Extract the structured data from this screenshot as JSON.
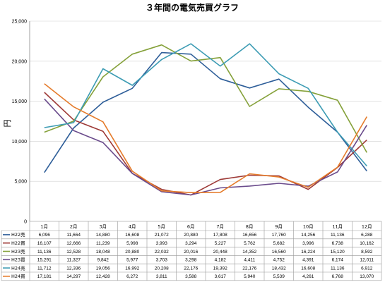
{
  "chart_data": {
    "type": "line",
    "title": "３年間の電気売買グラフ",
    "ylabel": "円",
    "ylim": [
      0,
      25000
    ],
    "yticks": [
      "0",
      "5,000",
      "10,000",
      "15,000",
      "20,000",
      "25,000"
    ],
    "categories": [
      "1月",
      "2月",
      "3月",
      "4月",
      "5月",
      "6月",
      "7月",
      "8月",
      "9月",
      "10月",
      "11月",
      "12月"
    ],
    "grid": true,
    "legend": "data-table",
    "series": [
      {
        "name": "H22売",
        "color": "#2E5E99",
        "values": [
          6096,
          11664,
          14880,
          16608,
          21072,
          20880,
          17808,
          16656,
          17760,
          14256,
          11136,
          6288
        ],
        "labels": [
          "6,096",
          "11,664",
          "14,880",
          "16,608",
          "21,072",
          "20,880",
          "17,808",
          "16,656",
          "17,760",
          "14,256",
          "11,136",
          "6,288"
        ]
      },
      {
        "name": "H22買",
        "color": "#9E3A37",
        "values": [
          16107,
          12666,
          11239,
          5998,
          3993,
          3294,
          5227,
          5762,
          5682,
          3996,
          6738,
          10162
        ],
        "labels": [
          "16,107",
          "12,666",
          "11,239",
          "5,998",
          "3,993",
          "3,294",
          "5,227",
          "5,762",
          "5,682",
          "3,996",
          "6,738",
          "10,162"
        ]
      },
      {
        "name": "H23売",
        "color": "#85A13A",
        "values": [
          11136,
          12528,
          18048,
          20880,
          22032,
          20016,
          20448,
          14352,
          16560,
          16224,
          15120,
          8592
        ],
        "labels": [
          "11,136",
          "12,528",
          "18,048",
          "20,880",
          "22,032",
          "20,016",
          "20,448",
          "14,352",
          "16,560",
          "16,224",
          "15,120",
          "8,592"
        ]
      },
      {
        "name": "H23買",
        "color": "#6B4C8C",
        "values": [
          15291,
          11327,
          9842,
          5977,
          3703,
          3298,
          4182,
          4411,
          4752,
          4391,
          6174,
          12011
        ],
        "labels": [
          "15,291",
          "11,327",
          "9,842",
          "5,977",
          "3,703",
          "3,298",
          "4,182",
          "4,411",
          "4,752",
          "4,391",
          "6,174",
          "12,011"
        ]
      },
      {
        "name": "H24売",
        "color": "#3D9CB4",
        "values": [
          11712,
          12336,
          19056,
          16992,
          20208,
          22176,
          19392,
          22176,
          18432,
          16608,
          11136,
          6912
        ],
        "labels": [
          "11,712",
          "12,336",
          "19,056",
          "16,992",
          "20,208",
          "22,176",
          "19,392",
          "22,176",
          "18,432",
          "16,608",
          "11,136",
          "6,912"
        ]
      },
      {
        "name": "H24買",
        "color": "#E57C2C",
        "values": [
          17181,
          14297,
          12428,
          6272,
          3811,
          3588,
          3617,
          5940,
          5539,
          4261,
          6768,
          13070
        ],
        "labels": [
          "17,181",
          "14,297",
          "12,428",
          "6,272",
          "3,811",
          "3,588",
          "3,617",
          "5,940",
          "5,539",
          "4,261",
          "6,768",
          "13,070"
        ]
      }
    ]
  }
}
